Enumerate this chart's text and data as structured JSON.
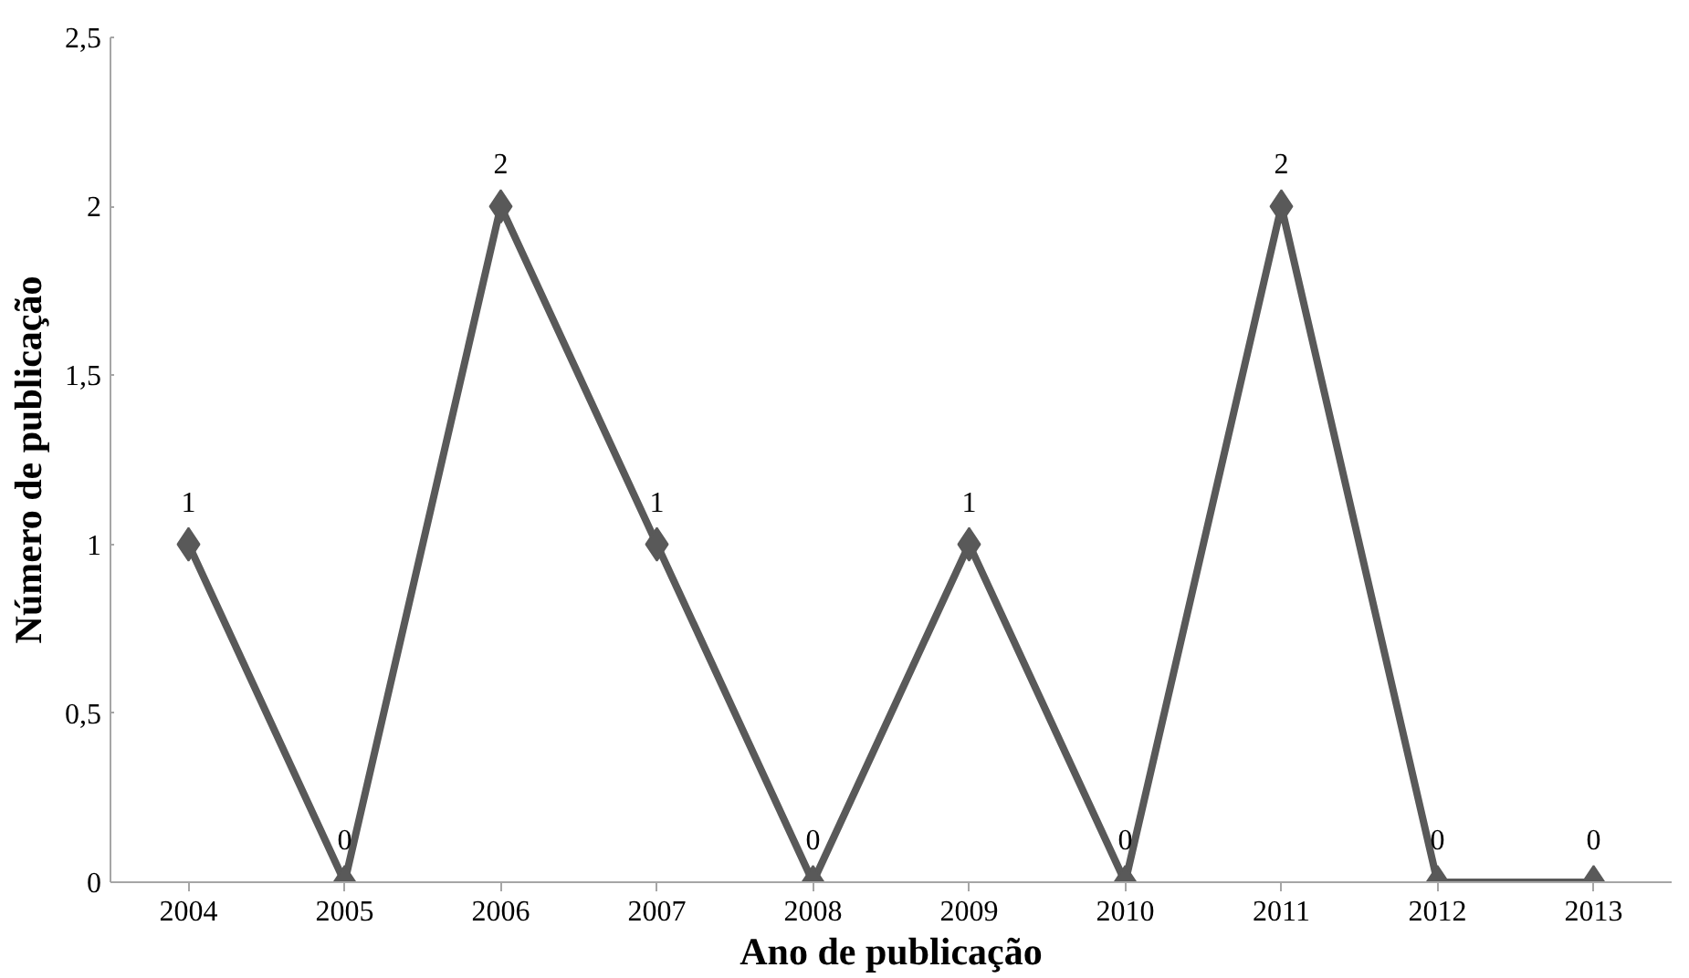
{
  "chart_data": {
    "type": "line",
    "xlabel": "Ano de publicação",
    "ylabel": "Número de publicação",
    "categories": [
      "2004",
      "2005",
      "2006",
      "2007",
      "2008",
      "2009",
      "2010",
      "2011",
      "2012",
      "2013"
    ],
    "series": [
      {
        "color": "#595959",
        "values": [
          1,
          0,
          2,
          1,
          0,
          1,
          0,
          2,
          0,
          0
        ]
      }
    ],
    "ylim": [
      0,
      2.5
    ],
    "yticks": [
      0,
      {
        "value": 0.5,
        "label": "0,5"
      },
      1,
      {
        "value": 1.5,
        "label": "1,5"
      },
      2,
      {
        "value": 2.5,
        "label": "2,5"
      }
    ],
    "marker": "diamond",
    "line_style": "solid",
    "data_labels": true
  }
}
